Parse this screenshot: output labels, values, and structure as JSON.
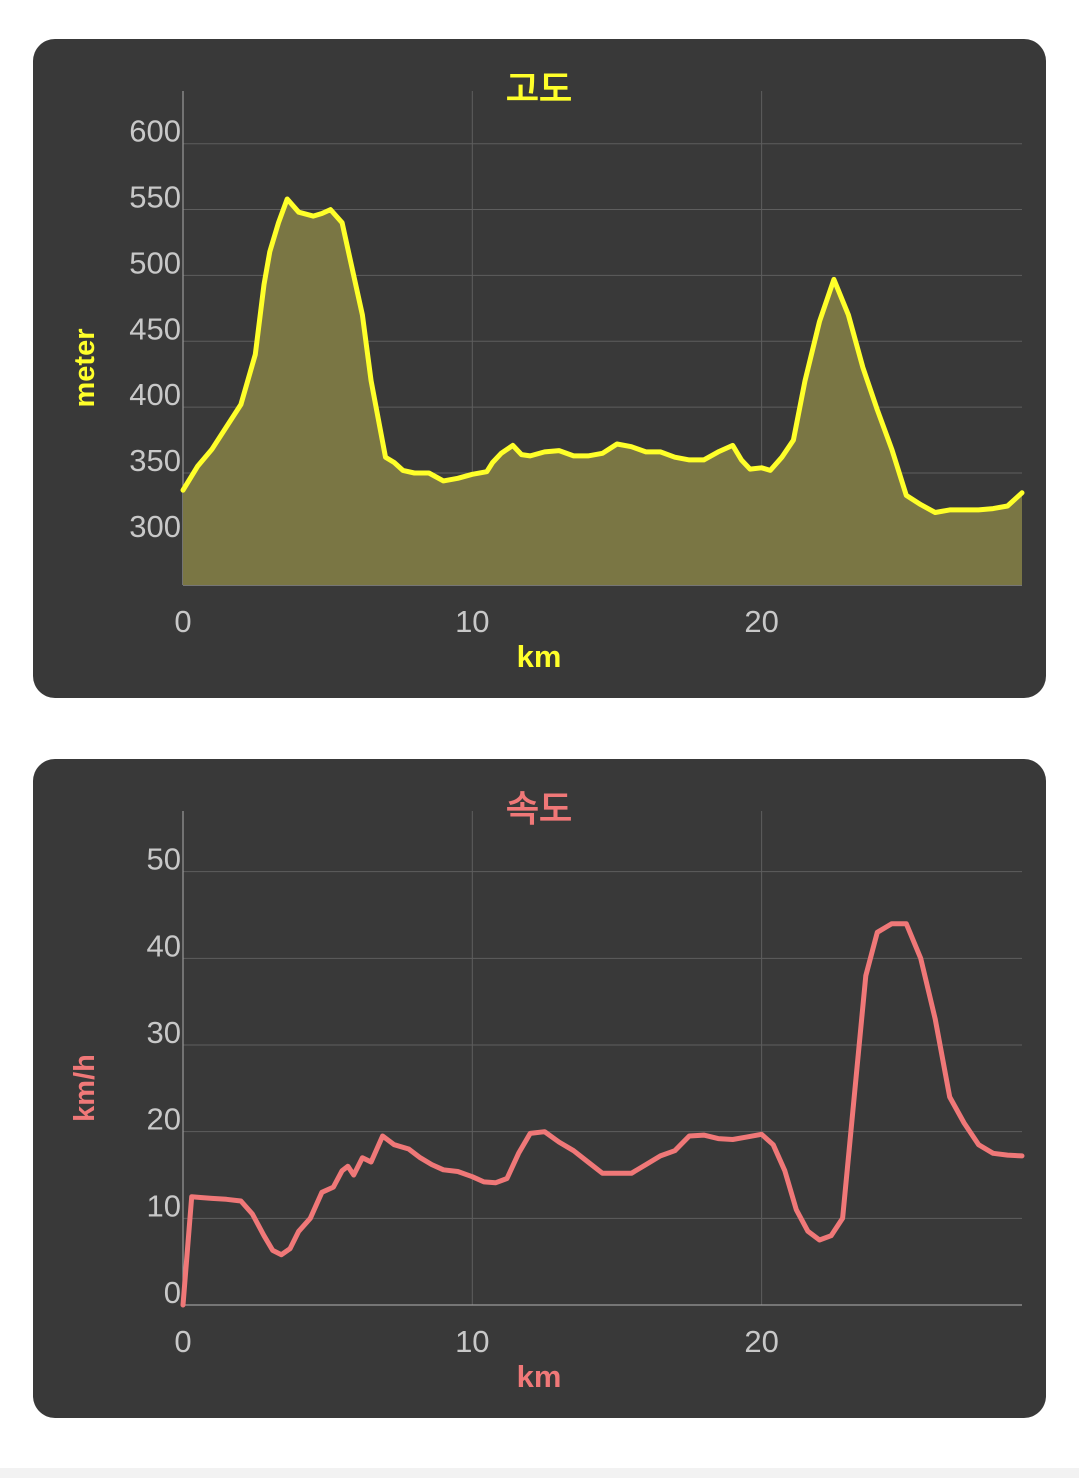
{
  "colors": {
    "card_bg": "#393939",
    "grid": "#5e5e5e",
    "tick_label": "#c8c8c8",
    "elevation_accent": "#ffff2a",
    "elevation_fill": "#7a7644",
    "speed_accent": "#f07878"
  },
  "chart_data": [
    {
      "type": "area",
      "title": "고도",
      "xlabel": "km",
      "ylabel": "meter",
      "xlim": [
        0,
        29
      ],
      "ylim": [
        265,
        640
      ],
      "x_ticks": [
        0,
        10,
        20
      ],
      "y_ticks": [
        300,
        350,
        400,
        450,
        500,
        550,
        600
      ],
      "grid": true,
      "series": [
        {
          "x": [
            0,
            0.5,
            1,
            1.5,
            2,
            2.5,
            2.8,
            3,
            3.3,
            3.6,
            4,
            4.5,
            4.8,
            5.1,
            5.5,
            5.8,
            6.2,
            6.5,
            7,
            7.3,
            7.6,
            8,
            8.5,
            9,
            9.5,
            10,
            10.5,
            10.7,
            11,
            11.4,
            11.7,
            12,
            12.5,
            13,
            13.5,
            14,
            14.5,
            15,
            15.5,
            16,
            16.5,
            17,
            17.5,
            18,
            18.5,
            19,
            19.3,
            19.6,
            20,
            20.3,
            20.7,
            21.1,
            21.5,
            22,
            22.5,
            23,
            23.5,
            24,
            24.5,
            25,
            25.5,
            26,
            26.5,
            27,
            27.5,
            28,
            28.5,
            29
          ],
          "y": [
            337,
            355,
            368,
            385,
            402,
            440,
            493,
            518,
            540,
            558,
            548,
            545,
            547,
            550,
            540,
            510,
            470,
            420,
            362,
            358,
            352,
            350,
            350,
            344,
            346,
            349,
            351,
            358,
            365,
            371,
            364,
            363,
            366,
            367,
            363,
            363,
            365,
            372,
            370,
            366,
            366,
            362,
            360,
            360,
            366,
            371,
            360,
            353,
            354,
            352,
            362,
            375,
            420,
            465,
            497,
            470,
            430,
            398,
            368,
            333,
            326,
            320,
            322,
            322,
            322,
            323,
            325,
            335
          ]
        }
      ]
    },
    {
      "type": "line",
      "title": "속도",
      "xlabel": "km",
      "ylabel": "km/h",
      "xlim": [
        0,
        29
      ],
      "ylim": [
        0,
        57
      ],
      "x_ticks": [
        0,
        10,
        20
      ],
      "y_ticks": [
        0,
        10,
        20,
        30,
        40,
        50
      ],
      "grid": true,
      "series": [
        {
          "x": [
            0,
            0.3,
            0.6,
            1,
            1.5,
            2,
            2.4,
            2.8,
            3.1,
            3.4,
            3.7,
            4,
            4.4,
            4.8,
            5.2,
            5.5,
            5.7,
            5.9,
            6.2,
            6.5,
            6.9,
            7.3,
            7.8,
            8.2,
            8.6,
            9,
            9.5,
            10,
            10.4,
            10.8,
            11.2,
            11.6,
            12,
            12.5,
            13,
            13.5,
            14,
            14.5,
            15,
            15.5,
            16,
            16.5,
            17,
            17.5,
            18,
            18.5,
            19,
            19.5,
            20,
            20.4,
            20.8,
            21.2,
            21.6,
            22,
            22.4,
            22.8,
            23.2,
            23.6,
            24,
            24.5,
            25,
            25.5,
            26,
            26.5,
            27,
            27.5,
            28,
            28.5,
            29
          ],
          "y": [
            0,
            12.5,
            12.4,
            12.3,
            12.2,
            12,
            10.5,
            8,
            6.3,
            5.8,
            6.5,
            8.5,
            10,
            13,
            13.6,
            15.5,
            16,
            15,
            17,
            16.5,
            19.5,
            18.5,
            18,
            17,
            16.2,
            15.6,
            15.4,
            14.8,
            14.2,
            14.1,
            14.6,
            17.5,
            19.8,
            20,
            18.8,
            17.8,
            16.5,
            15.2,
            15.2,
            15.2,
            16.2,
            17.2,
            17.8,
            19.5,
            19.6,
            19.2,
            19.1,
            19.4,
            19.7,
            18.5,
            15.5,
            11,
            8.5,
            7.5,
            8,
            10,
            24,
            38,
            43,
            44,
            44,
            40,
            33,
            24,
            21,
            18.5,
            17.5,
            17.3,
            17.2
          ]
        }
      ]
    }
  ]
}
